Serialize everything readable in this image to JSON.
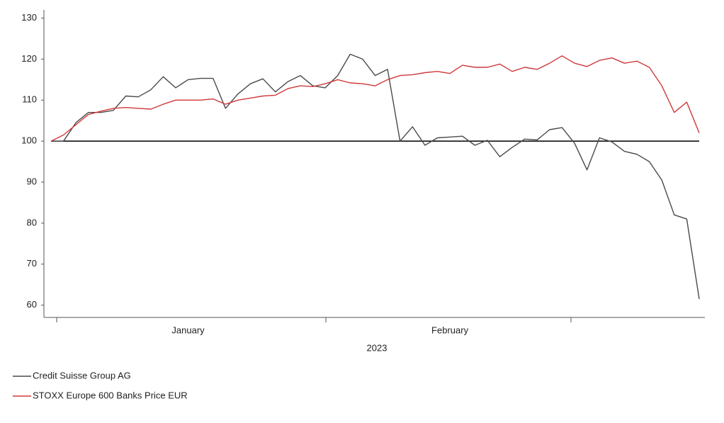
{
  "chart_data": {
    "type": "line",
    "x_label": "2023",
    "categories": [
      null,
      null,
      null,
      null,
      null,
      null,
      null,
      null,
      null,
      null,
      null,
      "January",
      null,
      null,
      null,
      null,
      null,
      null,
      null,
      null,
      null,
      null,
      null,
      null,
      null,
      null,
      null,
      null,
      null,
      null,
      null,
      null,
      "February",
      null,
      null,
      null,
      null,
      null,
      null,
      null,
      null,
      null,
      null,
      null,
      null,
      null,
      null,
      null,
      null,
      null,
      null,
      null,
      null
    ],
    "series": [
      {
        "name": "Credit Suisse Group AG",
        "color": "#4a4a4a",
        "values": [
          100,
          100,
          104.5,
          107,
          107,
          107.5,
          111,
          110.8,
          112.5,
          115.7,
          113,
          115,
          115.3,
          115.3,
          108,
          111.5,
          114,
          115.2,
          112,
          114.5,
          116,
          113.5,
          113,
          116,
          121.2,
          120,
          116,
          117.5,
          100,
          103.5,
          99,
          100.8,
          101,
          101.2,
          99,
          100.2,
          96.2,
          98.5,
          100.5,
          100.3,
          102.8,
          103.3,
          99.5,
          93,
          100.8,
          99.8,
          97.5,
          96.8,
          95,
          90.5,
          82,
          81,
          61.5
        ]
      },
      {
        "name": "STOXX Europe 600 Banks Price EUR",
        "color": "#d0393b",
        "values": [
          100,
          101.5,
          104,
          106.5,
          107.3,
          108,
          108.2,
          108,
          107.8,
          109,
          110,
          110,
          110,
          110.3,
          109,
          110,
          110.5,
          111,
          111.2,
          112.8,
          113.5,
          113.3,
          114,
          115,
          114.2,
          114,
          113.5,
          115,
          116,
          116.2,
          116.7,
          117,
          116.5,
          118.5,
          118,
          118,
          118.8,
          117,
          118,
          117.5,
          119,
          120.8,
          119,
          118.2,
          119.7,
          120.3,
          119,
          119.5,
          118,
          113.5,
          107,
          109.5,
          102
        ]
      }
    ],
    "reference_line": 100,
    "ylim": [
      57,
      132
    ],
    "yticks": [
      60,
      70,
      80,
      90,
      100,
      110,
      120,
      130
    ],
    "grid": false,
    "legend": "bottom-left"
  }
}
